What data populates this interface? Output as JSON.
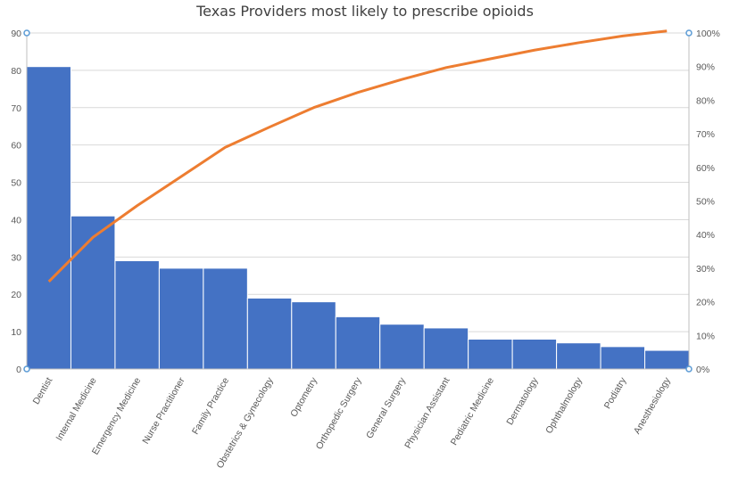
{
  "chart_data": {
    "type": "bar",
    "title": "Texas Providers most likely to prescribe opioids",
    "categories": [
      "Dentist",
      "Internal Medicine",
      "Emergency Medicine",
      "Nurse Practitioner",
      "Family Practice",
      "Obstetrics & Gynecology",
      "Optometry",
      "Orthopedic Surgery",
      "General Surgery",
      "Physician Assistant",
      "Pediatric Medicine",
      "Dermatology",
      "Ophthalmology",
      "Podiatry",
      "Anesthesiology"
    ],
    "series": [
      {
        "type": "bar",
        "axis": "left",
        "values": [
          81,
          41,
          29,
          27,
          27,
          19,
          18,
          14,
          12,
          11,
          8,
          8,
          7,
          6,
          5
        ]
      },
      {
        "type": "line",
        "axis": "right",
        "values": [
          26.0,
          39.2,
          48.6,
          57.3,
          66.0,
          72.0,
          77.8,
          82.3,
          86.2,
          89.7,
          92.3,
          94.9,
          97.1,
          99.1,
          100.6
        ]
      }
    ],
    "ylim": [
      0,
      90
    ],
    "yticks": [
      "0",
      "10",
      "20",
      "30",
      "40",
      "50",
      "60",
      "70",
      "80",
      "90"
    ],
    "y2lim": [
      0,
      100
    ],
    "y2ticks": [
      "0%",
      "10%",
      "20%",
      "30%",
      "40%",
      "50%",
      "60%",
      "70%",
      "80%",
      "90%",
      "100%"
    ],
    "grid": true,
    "legend": "none",
    "colors": {
      "bar": "#4472C4",
      "line": "#ED7D31",
      "grid": "#D9D9D9",
      "axis": "#BFBFBF",
      "handle": "#5B9BD5"
    }
  }
}
